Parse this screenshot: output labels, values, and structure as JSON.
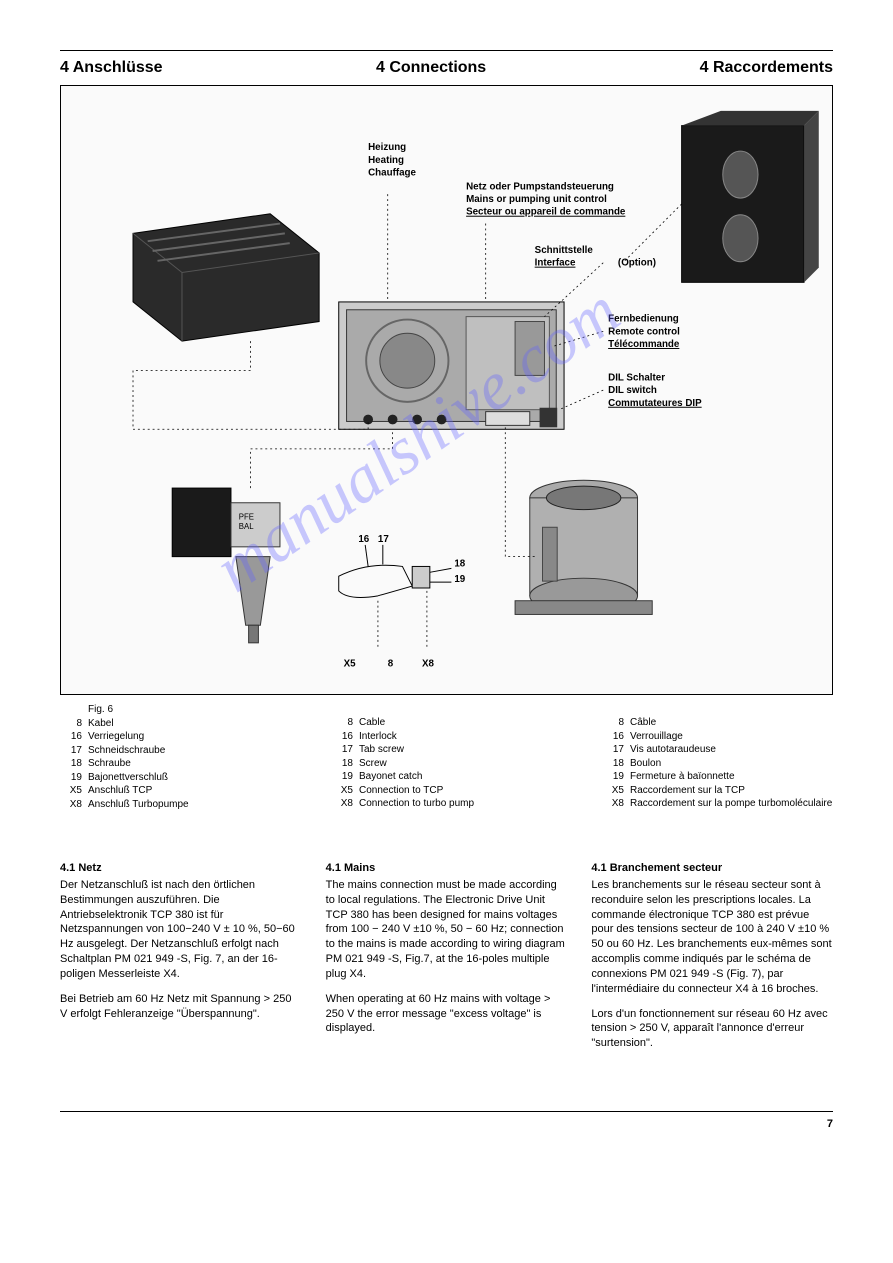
{
  "headers": {
    "de": "4 Anschlüsse",
    "en": "4 Connections",
    "fr": "4 Raccordements"
  },
  "figure": {
    "labels": {
      "heating": [
        "Heizung",
        "Heating",
        "Chauffage"
      ],
      "mains": [
        "Netz oder Pumpstandsteuerung",
        "Mains or pumping unit control",
        "Secteur ou appareil de commande"
      ],
      "interface": [
        "Schnittstelle",
        "Interface",
        "(Option)"
      ],
      "remote": [
        "Fernbedienung",
        "Remote control",
        "Télécommande"
      ],
      "dil": [
        "DIL Schalter",
        "DIL switch",
        "Commutateures DIP"
      ],
      "callouts": {
        "16": "16",
        "17": "17",
        "18": "18",
        "19": "19"
      },
      "bottom": {
        "x5": "X5",
        "eight": "8",
        "x8": "X8"
      }
    },
    "caption": "Fig. 6",
    "legend": {
      "de": [
        {
          "n": "8",
          "t": "Kabel"
        },
        {
          "n": "16",
          "t": "Verriegelung"
        },
        {
          "n": "17",
          "t": "Schneidschraube"
        },
        {
          "n": "18",
          "t": "Schraube"
        },
        {
          "n": "19",
          "t": "Bajonettverschluß"
        },
        {
          "n": "X5",
          "t": "Anschluß TCP"
        },
        {
          "n": "X8",
          "t": "Anschluß Turbopumpe"
        }
      ],
      "en": [
        {
          "n": "8",
          "t": "Cable"
        },
        {
          "n": "16",
          "t": "Interlock"
        },
        {
          "n": "17",
          "t": "Tab screw"
        },
        {
          "n": "18",
          "t": "Screw"
        },
        {
          "n": "19",
          "t": "Bayonet catch"
        },
        {
          "n": "X5",
          "t": "Connection to TCP"
        },
        {
          "n": "X8",
          "t": "Connection to turbo pump"
        }
      ],
      "fr": [
        {
          "n": "8",
          "t": "Câble"
        },
        {
          "n": "16",
          "t": "Verrouillage"
        },
        {
          "n": "17",
          "t": "Vis autotaraudeuse"
        },
        {
          "n": "18",
          "t": "Boulon"
        },
        {
          "n": "19",
          "t": "Fermeture à baïonnette"
        },
        {
          "n": "X5",
          "t": "Raccordement sur la TCP"
        },
        {
          "n": "X8",
          "t": "Raccordement sur la pompe turbomoléculaire"
        }
      ]
    }
  },
  "body": {
    "de": {
      "title": "4.1 Netz",
      "p1": "Der Netzanschluß ist nach den örtlichen Bestimmungen auszuführen. Die Antriebselektronik TCP 380 ist für Netzspannungen von 100−240 V ± 10 %, 50−60 Hz ausgelegt. Der Netzanschluß erfolgt nach Schaltplan PM 021 949 -S, Fig. 7, an der 16-poligen Messerleiste X4.",
      "p2": "Bei Betrieb am 60 Hz Netz mit Spannung > 250 V erfolgt Fehleranzeige \"Überspannung\"."
    },
    "en": {
      "title": "4.1 Mains",
      "p1": "The mains connection must be made according to local regulations. The Electronic Drive Unit TCP 380 has been designed for mains voltages from 100 − 240 V ±10 %, 50 − 60 Hz; connection to the mains is made according to wiring diagram PM 021 949 -S, Fig.7, at the 16-poles multiple plug X4.",
      "p2": "When operating at 60 Hz mains with voltage > 250 V the error message \"excess voltage\" is displayed."
    },
    "fr": {
      "title": "4.1 Branchement secteur",
      "p1": "Les branchements sur le réseau secteur sont à reconduire selon les prescriptions locales. La commande électronique TCP 380 est prévue pour des tensions secteur de 100 à 240 V ±10 % 50 ou 60 Hz. Les branchements eux-mêmes sont accomplis comme indiqués par le schéma de connexions PM 021 949 -S (Fig. 7), par l'intermédiaire du connecteur X4 à 16 broches.",
      "p2": "Lors d'un fonctionnement sur réseau 60 Hz avec tension > 250 V, apparaît l'annonce d'erreur \"surtension\"."
    }
  },
  "watermark": "manualshive.com",
  "pageNumber": "7",
  "colors": {
    "watermark": "rgba(100,100,255,0.35)",
    "text": "#000000",
    "box_fill": "#d0d0d0",
    "box_dark": "#2a2a2a",
    "box_mid": "#888888"
  }
}
